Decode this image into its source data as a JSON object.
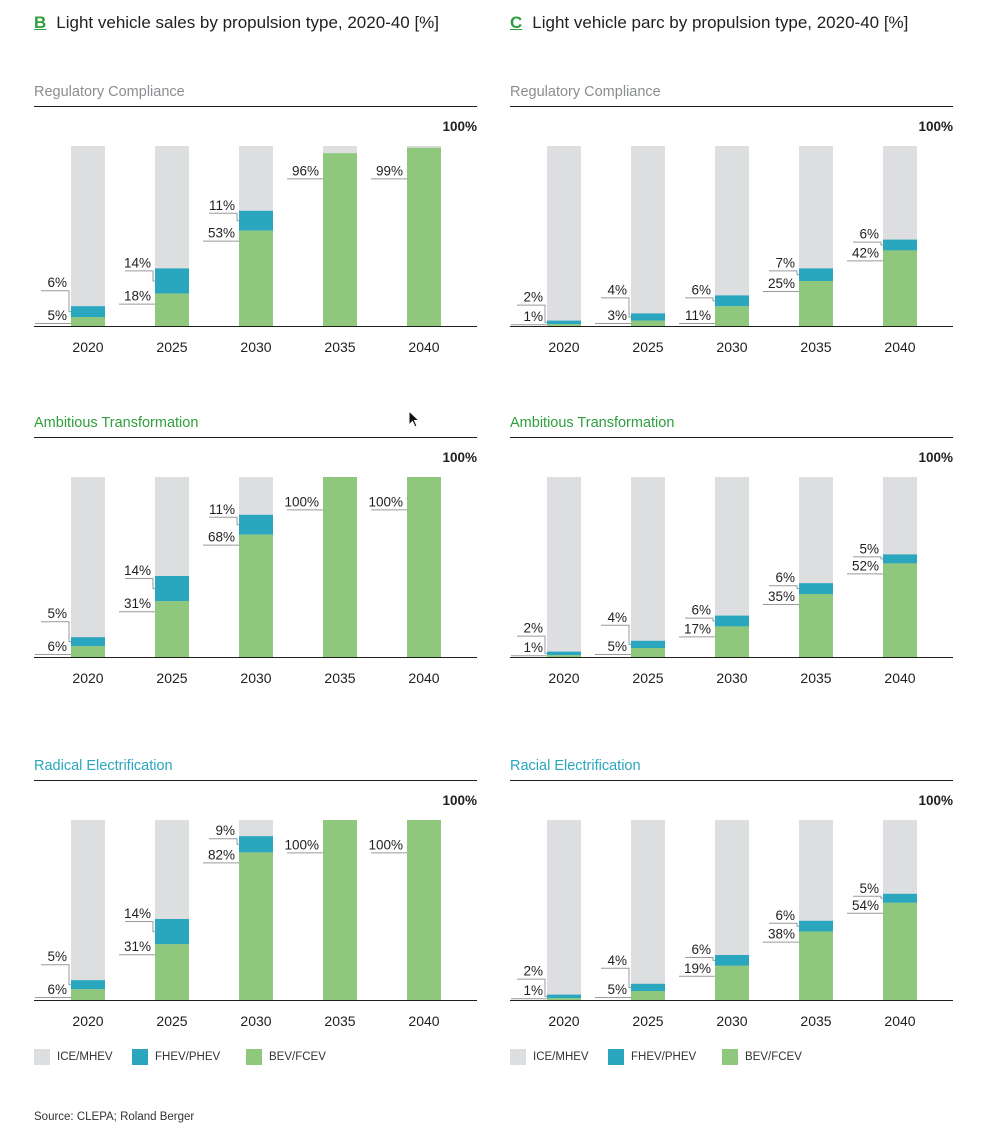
{
  "headings": {
    "left": {
      "letter": "B",
      "text": "Light vehicle sales by propulsion type, 2020-40 [%]"
    },
    "right": {
      "letter": "C",
      "text": "Light vehicle parc by propulsion type, 2020-40 [%]"
    }
  },
  "colors": {
    "ice": "#dcdee0",
    "fhev": "#2aa6bf",
    "bev": "#8fc77c",
    "title_gray": "#8a8d90",
    "title_green": "#2e9e3e",
    "title_teal": "#2aa6bf"
  },
  "legend": [
    {
      "key": "ice",
      "label": "ICE/MHEV"
    },
    {
      "key": "fhev",
      "label": "FHEV/PHEV"
    },
    {
      "key": "bev",
      "label": "BEV/FCEV"
    }
  ],
  "source": "Source: CLEPA; Roland Berger",
  "chart_data": [
    {
      "type": "bar",
      "stacked": true,
      "title": "Regulatory Compliance",
      "title_color": "gray",
      "categories": [
        "2020",
        "2025",
        "2030",
        "2035",
        "2040"
      ],
      "ylim": [
        0,
        100
      ],
      "top_label": "100%",
      "series": [
        {
          "key": "bev",
          "values": [
            5,
            18,
            53,
            96,
            99
          ],
          "labels": [
            "5%",
            "18%",
            "53%",
            "96%",
            "99%"
          ]
        },
        {
          "key": "fhev",
          "values": [
            6,
            14,
            11,
            0,
            0
          ],
          "labels": [
            "6%",
            "14%",
            "11%",
            "",
            ""
          ]
        }
      ]
    },
    {
      "type": "bar",
      "stacked": true,
      "title": "Regulatory Compliance",
      "title_color": "gray",
      "categories": [
        "2020",
        "2025",
        "2030",
        "2035",
        "2040"
      ],
      "ylim": [
        0,
        100
      ],
      "top_label": "100%",
      "series": [
        {
          "key": "bev",
          "values": [
            1,
            3,
            11,
            25,
            42
          ],
          "labels": [
            "1%",
            "3%",
            "11%",
            "25%",
            "42%"
          ]
        },
        {
          "key": "fhev",
          "values": [
            2,
            4,
            6,
            7,
            6
          ],
          "labels": [
            "2%",
            "4%",
            "6%",
            "7%",
            "6%"
          ]
        }
      ]
    },
    {
      "type": "bar",
      "stacked": true,
      "title": "Ambitious Transformation",
      "title_color": "green",
      "categories": [
        "2020",
        "2025",
        "2030",
        "2035",
        "2040"
      ],
      "ylim": [
        0,
        100
      ],
      "top_label": "100%",
      "series": [
        {
          "key": "bev",
          "values": [
            6,
            31,
            68,
            100,
            100
          ],
          "labels": [
            "6%",
            "31%",
            "68%",
            "100%",
            "100%"
          ]
        },
        {
          "key": "fhev",
          "values": [
            5,
            14,
            11,
            0,
            0
          ],
          "labels": [
            "5%",
            "14%",
            "11%",
            "",
            ""
          ]
        }
      ]
    },
    {
      "type": "bar",
      "stacked": true,
      "title": "Ambitious Transformation",
      "title_color": "green",
      "categories": [
        "2020",
        "2025",
        "2030",
        "2035",
        "2040"
      ],
      "ylim": [
        0,
        100
      ],
      "top_label": "100%",
      "series": [
        {
          "key": "bev",
          "values": [
            1,
            5,
            17,
            35,
            52
          ],
          "labels": [
            "1%",
            "5%",
            "17%",
            "35%",
            "52%"
          ]
        },
        {
          "key": "fhev",
          "values": [
            2,
            4,
            6,
            6,
            5
          ],
          "labels": [
            "2%",
            "4%",
            "6%",
            "6%",
            "5%"
          ]
        }
      ]
    },
    {
      "type": "bar",
      "stacked": true,
      "title": "Radical Electrification",
      "title_color": "teal",
      "categories": [
        "2020",
        "2025",
        "2030",
        "2035",
        "2040"
      ],
      "ylim": [
        0,
        100
      ],
      "top_label": "100%",
      "series": [
        {
          "key": "bev",
          "values": [
            6,
            31,
            82,
            100,
            100
          ],
          "labels": [
            "6%",
            "31%",
            "82%",
            "100%",
            "100%"
          ]
        },
        {
          "key": "fhev",
          "values": [
            5,
            14,
            9,
            0,
            0
          ],
          "labels": [
            "5%",
            "14%",
            "9%",
            "",
            ""
          ]
        }
      ]
    },
    {
      "type": "bar",
      "stacked": true,
      "title": "Racial Electrification",
      "title_color": "teal",
      "categories": [
        "2020",
        "2025",
        "2030",
        "2035",
        "2040"
      ],
      "ylim": [
        0,
        100
      ],
      "top_label": "100%",
      "series": [
        {
          "key": "bev",
          "values": [
            1,
            5,
            19,
            38,
            54
          ],
          "labels": [
            "1%",
            "5%",
            "19%",
            "38%",
            "54%"
          ]
        },
        {
          "key": "fhev",
          "values": [
            2,
            4,
            6,
            6,
            5
          ],
          "labels": [
            "2%",
            "4%",
            "6%",
            "6%",
            "5%"
          ]
        }
      ]
    }
  ]
}
